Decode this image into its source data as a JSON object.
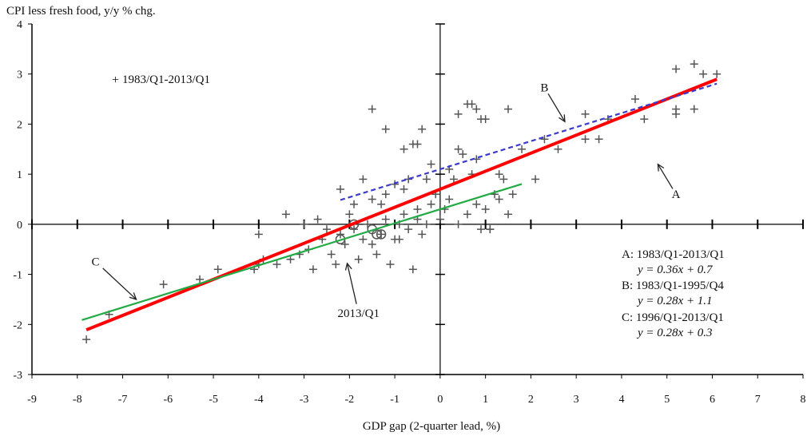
{
  "chart_data": {
    "type": "scatter",
    "ylabel": "CPI less fresh food, y/y % chg.",
    "xlabel": "GDP gap (2-quarter lead, %)",
    "xlim": [
      -9,
      8
    ],
    "ylim": [
      -3,
      4
    ],
    "x_ticks": [
      "-9",
      "-8",
      "-7",
      "-6",
      "-5",
      "-4",
      "-3",
      "-2",
      "-1",
      "0",
      "1",
      "2",
      "3",
      "4",
      "5",
      "6",
      "7",
      "8"
    ],
    "y_ticks": [
      "4",
      "3",
      "2",
      "1",
      "0",
      "-1",
      "-2",
      "-3"
    ],
    "grid": false,
    "series": [
      {
        "name": "1983/Q1-2013/Q1",
        "marker": "plus",
        "color": "#555555",
        "points": [
          [
            -7.8,
            -2.3
          ],
          [
            -7.3,
            -1.8
          ],
          [
            -6.1,
            -1.2
          ],
          [
            -5.3,
            -1.1
          ],
          [
            -4.9,
            -0.9
          ],
          [
            -4.1,
            -0.9
          ],
          [
            -4.0,
            -0.8
          ],
          [
            -3.9,
            -0.7
          ],
          [
            -3.6,
            -0.8
          ],
          [
            -3.3,
            -0.7
          ],
          [
            -3.1,
            -0.6
          ],
          [
            -2.9,
            -0.5
          ],
          [
            -2.8,
            -0.9
          ],
          [
            -2.6,
            -0.3
          ],
          [
            -2.4,
            -0.6
          ],
          [
            -2.3,
            -0.8
          ],
          [
            -2.2,
            -0.2
          ],
          [
            -2.1,
            -0.4
          ],
          [
            -2.0,
            0.2
          ],
          [
            -1.9,
            -0.1
          ],
          [
            -1.8,
            -0.7
          ],
          [
            -1.7,
            -0.3
          ],
          [
            -1.6,
            0.0
          ],
          [
            -1.5,
            -0.4
          ],
          [
            -1.4,
            -0.6
          ],
          [
            -1.3,
            -0.2
          ],
          [
            -1.2,
            0.1
          ],
          [
            -1.1,
            -0.8
          ],
          [
            -1.0,
            -0.3
          ],
          [
            -0.9,
            0.0
          ],
          [
            -0.8,
            0.2
          ],
          [
            -0.7,
            -0.1
          ],
          [
            -0.6,
            -0.9
          ],
          [
            -0.5,
            0.3
          ],
          [
            -0.4,
            -0.2
          ],
          [
            -0.3,
            0.0
          ],
          [
            -0.2,
            0.4
          ],
          [
            -0.1,
            0.6
          ],
          [
            0.0,
            0.1
          ],
          [
            0.1,
            0.3
          ],
          [
            0.2,
            0.5
          ],
          [
            0.4,
            0.0
          ],
          [
            0.6,
            0.2
          ],
          [
            0.8,
            0.4
          ],
          [
            1.0,
            0.3
          ],
          [
            1.1,
            -0.1
          ],
          [
            1.2,
            0.6
          ],
          [
            1.4,
            0.9
          ],
          [
            1.6,
            0.6
          ],
          [
            -4.0,
            -0.2
          ],
          [
            -3.4,
            0.2
          ],
          [
            -3.0,
            0.0
          ],
          [
            -2.7,
            0.1
          ],
          [
            -2.5,
            -0.1
          ],
          [
            -1.5,
            0.5
          ],
          [
            -1.2,
            0.6
          ],
          [
            -0.8,
            0.7
          ],
          [
            -0.3,
            0.9
          ],
          [
            0.3,
            0.9
          ],
          [
            0.7,
            1.0
          ],
          [
            1.3,
            0.5
          ],
          [
            1.5,
            0.2
          ],
          [
            -2.2,
            0.7
          ],
          [
            -1.9,
            0.4
          ],
          [
            -1.7,
            0.9
          ],
          [
            -1.3,
            0.4
          ],
          [
            -1.0,
            0.8
          ],
          [
            -0.7,
            0.9
          ],
          [
            -0.5,
            1.6
          ],
          [
            -0.2,
            1.2
          ],
          [
            0.2,
            1.1
          ],
          [
            0.4,
            1.5
          ],
          [
            0.8,
            1.3
          ],
          [
            1.3,
            1.0
          ],
          [
            2.1,
            0.9
          ],
          [
            -1.5,
            2.3
          ],
          [
            -1.2,
            1.9
          ],
          [
            -0.8,
            1.5
          ],
          [
            -0.6,
            1.6
          ],
          [
            -0.4,
            1.9
          ],
          [
            0.4,
            2.2
          ],
          [
            0.5,
            1.4
          ],
          [
            0.6,
            2.4
          ],
          [
            0.7,
            2.4
          ],
          [
            0.8,
            2.3
          ],
          [
            0.9,
            2.1
          ],
          [
            1.0,
            2.1
          ],
          [
            1.5,
            2.3
          ],
          [
            1.8,
            1.5
          ],
          [
            2.3,
            1.7
          ],
          [
            2.6,
            1.5
          ],
          [
            3.2,
            2.2
          ],
          [
            3.2,
            1.7
          ],
          [
            3.5,
            1.7
          ],
          [
            3.7,
            2.1
          ],
          [
            4.3,
            2.5
          ],
          [
            4.5,
            2.1
          ],
          [
            5.2,
            2.3
          ],
          [
            5.2,
            2.2
          ],
          [
            5.6,
            2.3
          ],
          [
            5.2,
            3.1
          ],
          [
            5.6,
            3.2
          ],
          [
            5.8,
            3.0
          ],
          [
            6.1,
            3.0
          ],
          [
            1.1,
            -0.1
          ],
          [
            0.9,
            -0.1
          ],
          [
            -0.5,
            0.1
          ],
          [
            -0.9,
            -0.3
          ]
        ]
      },
      {
        "name": "2013/Q1",
        "marker": "circle",
        "color": "#555555",
        "points": [
          [
            -2.2,
            -0.3
          ],
          [
            -1.9,
            0.0
          ],
          [
            -1.5,
            -0.1
          ],
          [
            -1.4,
            -0.2
          ],
          [
            -1.3,
            -0.2
          ]
        ]
      },
      {
        "name": "A",
        "type": "line",
        "style": "solid",
        "color": "#ff0000",
        "slope": 0.36,
        "intercept": 0.7,
        "x_range": [
          -7.8,
          6.1
        ]
      },
      {
        "name": "B",
        "type": "line",
        "style": "dashed",
        "color": "#3a3acc",
        "slope": 0.28,
        "intercept": 1.1,
        "x_range": [
          -2.2,
          6.1
        ]
      },
      {
        "name": "C",
        "type": "line",
        "style": "solid",
        "color": "#22aa44",
        "slope": 0.28,
        "intercept": 0.3,
        "x_range": [
          -7.9,
          1.8
        ]
      }
    ],
    "annotations": [
      {
        "label": "A",
        "text_at": [
          5.2,
          0.52
        ],
        "arrow_to": [
          4.8,
          1.2
        ]
      },
      {
        "label": "B",
        "text_at": [
          2.3,
          2.65
        ],
        "arrow_to": [
          2.75,
          2.05
        ]
      },
      {
        "label": "C",
        "text_at": [
          -7.6,
          -0.82
        ],
        "arrow_to": [
          -6.7,
          -1.5
        ]
      },
      {
        "label": "2013/Q1",
        "text_at": [
          -1.8,
          -1.85
        ],
        "arrow_to": [
          -2.05,
          -0.78
        ]
      }
    ],
    "legend": {
      "marker_label": "1983/Q1-2013/Q1",
      "placement": "top-left"
    },
    "equations": [
      {
        "title": "A: 1983/Q1-2013/Q1",
        "formula": "y = 0.36x + 0.7"
      },
      {
        "title": "B: 1983/Q1-1995/Q4",
        "formula": "y = 0.28x + 1.1"
      },
      {
        "title": "C: 1996/Q1-2013/Q1",
        "formula": "y = 0.28x + 0.3"
      }
    ]
  }
}
